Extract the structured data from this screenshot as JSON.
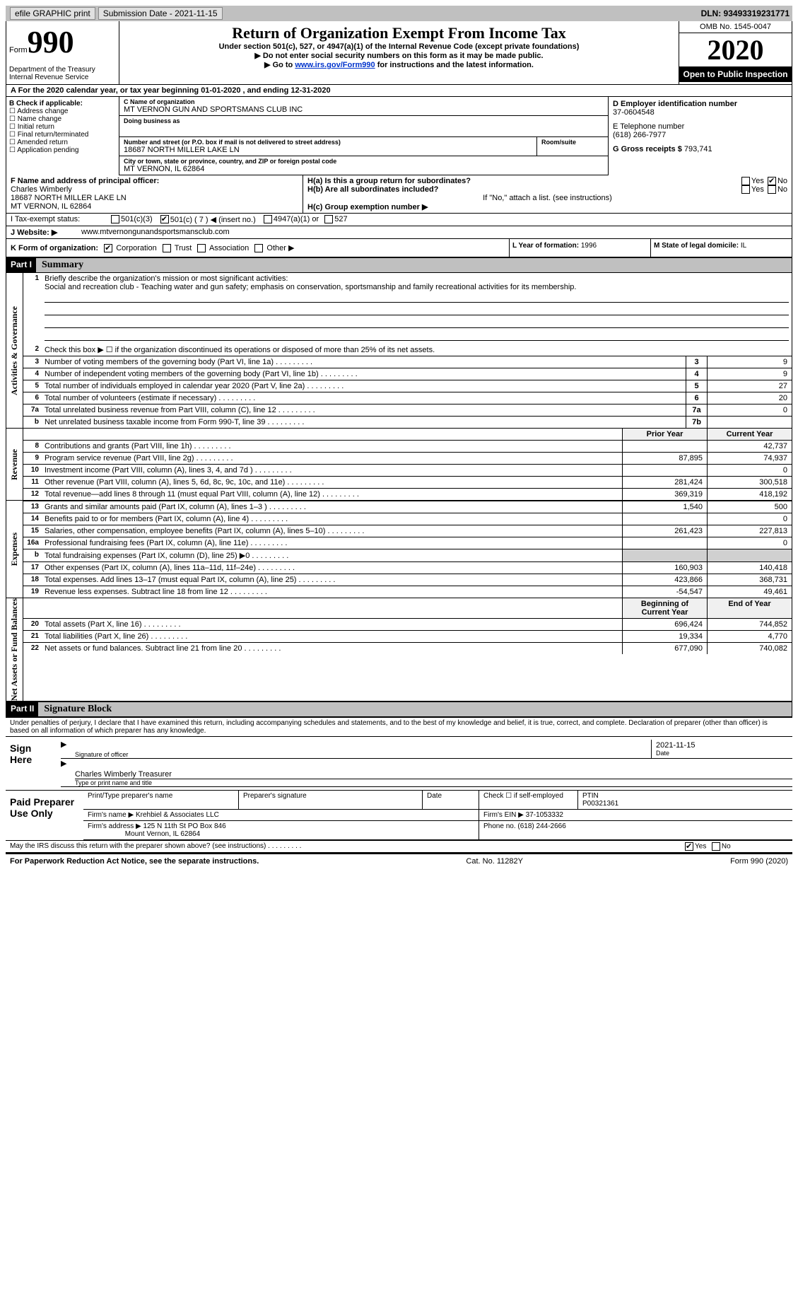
{
  "topbar": {
    "efile": "efile GRAPHIC print",
    "submission": "Submission Date - 2021-11-15",
    "dln": "DLN: 93493319231771"
  },
  "header": {
    "form_label": "Form",
    "form_number": "990",
    "dept": "Department of the Treasury\nInternal Revenue Service",
    "title": "Return of Organization Exempt From Income Tax",
    "sub1": "Under section 501(c), 527, or 4947(a)(1) of the Internal Revenue Code (except private foundations)",
    "sub2": "▶ Do not enter social security numbers on this form as it may be made public.",
    "sub3_prefix": "▶ Go to",
    "sub3_link": "www.irs.gov/Form990",
    "sub3_suffix": "for instructions and the latest information.",
    "omb": "OMB No. 1545-0047",
    "year": "2020",
    "inspection": "Open to Public Inspection"
  },
  "line_a": "A For the 2020 calendar year, or tax year beginning 01-01-2020    , and ending 12-31-2020",
  "section_b": {
    "label": "B Check if applicable:",
    "items": [
      "Address change",
      "Name change",
      "Initial return",
      "Final return/terminated",
      "Amended return",
      "Application pending"
    ]
  },
  "section_c": {
    "name_label": "C Name of organization",
    "name": "MT VERNON GUN AND SPORTSMANS CLUB INC",
    "dba_label": "Doing business as",
    "dba": "",
    "addr_label": "Number and street (or P.O. box if mail is not delivered to street address)",
    "addr": "18687 NORTH MILLER LAKE LN",
    "room_label": "Room/suite",
    "city_label": "City or town, state or province, country, and ZIP or foreign postal code",
    "city": "MT VERNON, IL  62864"
  },
  "section_d": {
    "ein_label": "D Employer identification number",
    "ein": "37-0604548",
    "phone_label": "E Telephone number",
    "phone": "(618) 266-7977",
    "gross_label": "G Gross receipts $",
    "gross": "793,741"
  },
  "section_f": {
    "label": "F  Name and address of principal officer:",
    "name": "Charles Wimberly",
    "addr1": "18687 NORTH MILLER LAKE LN",
    "addr2": "MT VERNON, IL  62864"
  },
  "section_h": {
    "ha": "H(a)  Is this a group return for subordinates?",
    "ha_yes": "Yes",
    "ha_no": "No",
    "hb": "H(b)  Are all subordinates included?",
    "hb_note": "If \"No,\" attach a list. (see instructions)",
    "hc": "H(c)  Group exemption number ▶"
  },
  "taxexempt": {
    "label": "I   Tax-exempt status:",
    "opt1": "501(c)(3)",
    "opt2": "501(c) ( 7 ) ◀ (insert no.)",
    "opt3": "4947(a)(1) or",
    "opt4": "527"
  },
  "website": {
    "label": "J   Website: ▶",
    "value": "www.mtvernongunandsportsmansclub.com"
  },
  "form_org": {
    "k_label": "K Form of organization:",
    "opts": [
      "Corporation",
      "Trust",
      "Association",
      "Other ▶"
    ],
    "l_label": "L Year of formation:",
    "l_val": "1996",
    "m_label": "M State of legal domicile:",
    "m_val": "IL"
  },
  "part1": {
    "hdr": "Part I",
    "title": "Summary",
    "l1_label": "Briefly describe the organization's mission or most significant activities:",
    "l1_text": "Social and recreation club - Teaching water and gun safety; emphasis on conservation, sportsmanship and family recreational activities for its membership.",
    "l2": "Check this box ▶ ☐  if the organization discontinued its operations or disposed of more than 25% of its net assets.",
    "gov_label": "Activities & Governance",
    "rev_label": "Revenue",
    "exp_label": "Expenses",
    "net_label": "Net Assets or Fund Balances",
    "rows_gov": [
      {
        "n": "3",
        "d": "Number of voting members of the governing body (Part VI, line 1a)",
        "b": "3",
        "v": "9"
      },
      {
        "n": "4",
        "d": "Number of independent voting members of the governing body (Part VI, line 1b)",
        "b": "4",
        "v": "9"
      },
      {
        "n": "5",
        "d": "Total number of individuals employed in calendar year 2020 (Part V, line 2a)",
        "b": "5",
        "v": "27"
      },
      {
        "n": "6",
        "d": "Total number of volunteers (estimate if necessary)",
        "b": "6",
        "v": "20"
      },
      {
        "n": "7a",
        "d": "Total unrelated business revenue from Part VIII, column (C), line 12",
        "b": "7a",
        "v": "0"
      },
      {
        "n": "b",
        "d": "Net unrelated business taxable income from Form 990-T, line 39",
        "b": "7b",
        "v": ""
      }
    ],
    "hdr_prior": "Prior Year",
    "hdr_current": "Current Year",
    "rows_rev": [
      {
        "n": "8",
        "d": "Contributions and grants (Part VIII, line 1h)",
        "p": "",
        "c": "42,737"
      },
      {
        "n": "9",
        "d": "Program service revenue (Part VIII, line 2g)",
        "p": "87,895",
        "c": "74,937"
      },
      {
        "n": "10",
        "d": "Investment income (Part VIII, column (A), lines 3, 4, and 7d )",
        "p": "",
        "c": "0"
      },
      {
        "n": "11",
        "d": "Other revenue (Part VIII, column (A), lines 5, 6d, 8c, 9c, 10c, and 11e)",
        "p": "281,424",
        "c": "300,518"
      },
      {
        "n": "12",
        "d": "Total revenue—add lines 8 through 11 (must equal Part VIII, column (A), line 12)",
        "p": "369,319",
        "c": "418,192"
      }
    ],
    "rows_exp": [
      {
        "n": "13",
        "d": "Grants and similar amounts paid (Part IX, column (A), lines 1–3 )",
        "p": "1,540",
        "c": "500"
      },
      {
        "n": "14",
        "d": "Benefits paid to or for members (Part IX, column (A), line 4)",
        "p": "",
        "c": "0"
      },
      {
        "n": "15",
        "d": "Salaries, other compensation, employee benefits (Part IX, column (A), lines 5–10)",
        "p": "261,423",
        "c": "227,813"
      },
      {
        "n": "16a",
        "d": "Professional fundraising fees (Part IX, column (A), line 11e)",
        "p": "",
        "c": "0"
      },
      {
        "n": "b",
        "d": "Total fundraising expenses (Part IX, column (D), line 25) ▶0",
        "p": "shade",
        "c": "shade"
      },
      {
        "n": "17",
        "d": "Other expenses (Part IX, column (A), lines 11a–11d, 11f–24e)",
        "p": "160,903",
        "c": "140,418"
      },
      {
        "n": "18",
        "d": "Total expenses. Add lines 13–17 (must equal Part IX, column (A), line 25)",
        "p": "423,866",
        "c": "368,731"
      },
      {
        "n": "19",
        "d": "Revenue less expenses. Subtract line 18 from line 12",
        "p": "-54,547",
        "c": "49,461"
      }
    ],
    "hdr_beg": "Beginning of Current Year",
    "hdr_end": "End of Year",
    "rows_net": [
      {
        "n": "20",
        "d": "Total assets (Part X, line 16)",
        "p": "696,424",
        "c": "744,852"
      },
      {
        "n": "21",
        "d": "Total liabilities (Part X, line 26)",
        "p": "19,334",
        "c": "4,770"
      },
      {
        "n": "22",
        "d": "Net assets or fund balances. Subtract line 21 from line 20",
        "p": "677,090",
        "c": "740,082"
      }
    ]
  },
  "part2": {
    "hdr": "Part II",
    "title": "Signature Block",
    "declare": "Under penalties of perjury, I declare that I have examined this return, including accompanying schedules and statements, and to the best of my knowledge and belief, it is true, correct, and complete. Declaration of preparer (other than officer) is based on all information of which preparer has any knowledge.",
    "sign_here": "Sign Here",
    "sig_officer_lbl": "Signature of officer",
    "sig_date_lbl": "Date",
    "sig_date": "2021-11-15",
    "name_title": "Charles Wimberly  Treasurer",
    "name_title_lbl": "Type or print name and title",
    "paid": "Paid Preparer Use Only",
    "prep_name_lbl": "Print/Type preparer's name",
    "prep_sig_lbl": "Preparer's signature",
    "date_lbl": "Date",
    "check_lbl": "Check ☐ if self-employed",
    "ptin_lbl": "PTIN",
    "ptin": "P00321361",
    "firm_name_lbl": "Firm's name    ▶",
    "firm_name": "Krehbiel & Associates LLC",
    "firm_ein_lbl": "Firm's EIN ▶",
    "firm_ein": "37-1053332",
    "firm_addr_lbl": "Firm's address ▶",
    "firm_addr1": "125 N 11th St PO Box 846",
    "firm_addr2": "Mount Vernon, IL  62864",
    "phone_lbl": "Phone no.",
    "phone": "(618) 244-2666",
    "may_discuss": "May the IRS discuss this return with the preparer shown above? (see instructions)",
    "yes": "Yes",
    "no": "No"
  },
  "footer": {
    "left": "For Paperwork Reduction Act Notice, see the separate instructions.",
    "mid": "Cat. No. 11282Y",
    "right": "Form 990 (2020)"
  }
}
